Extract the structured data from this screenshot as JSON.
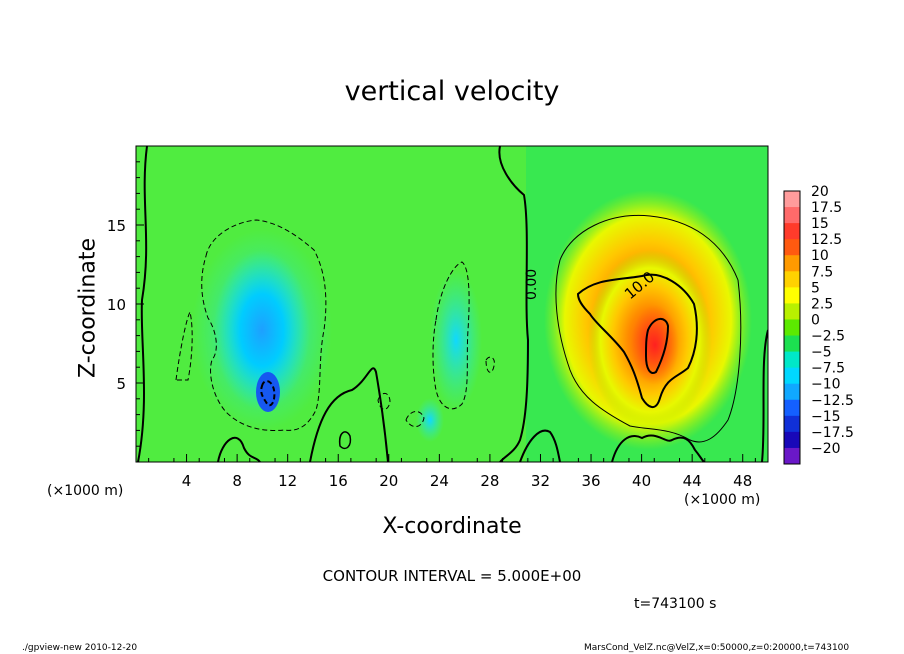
{
  "chart_data": {
    "type": "heatmap",
    "title": "vertical velocity",
    "xlabel": "X-coordinate",
    "ylabel": "Z-coordinate",
    "x_unit": "(×1000 m)",
    "y_unit": "(×1000 m)",
    "xlim": [
      0,
      50
    ],
    "ylim": [
      0,
      20
    ],
    "x_ticks": [
      4,
      8,
      12,
      16,
      20,
      24,
      28,
      32,
      36,
      40,
      44,
      48
    ],
    "y_ticks": [
      5,
      10,
      15
    ],
    "colorbar": {
      "levels": [
        "20",
        "17.5",
        "15",
        "12.5",
        "10",
        "7.5",
        "5",
        "2.5",
        "0",
        "−2.5",
        "−5",
        "−7.5",
        "−10",
        "−12.5",
        "−15",
        "−17.5",
        "−20"
      ],
      "colors": [
        "#ff9c9c",
        "#ff6a6a",
        "#ff3b2b",
        "#ff5a10",
        "#ff9a00",
        "#ffd200",
        "#ffff00",
        "#b8f000",
        "#5cea00",
        "#1ce050",
        "#00e8c8",
        "#00d8ff",
        "#10a8ff",
        "#1460ff",
        "#1030d8",
        "#1808b8",
        "#6a18c8"
      ]
    },
    "contour_labels": [
      "0.00",
      "10.0"
    ],
    "contour_interval_text": "CONTOUR INTERVAL = 5.000E+00",
    "time_text": "t=743100 s"
  },
  "footer": {
    "left": "./gpview-new  2010-12-20",
    "right": "MarsCond_VelZ.nc@VelZ,x=0:50000,z=0:20000,t=743100"
  }
}
